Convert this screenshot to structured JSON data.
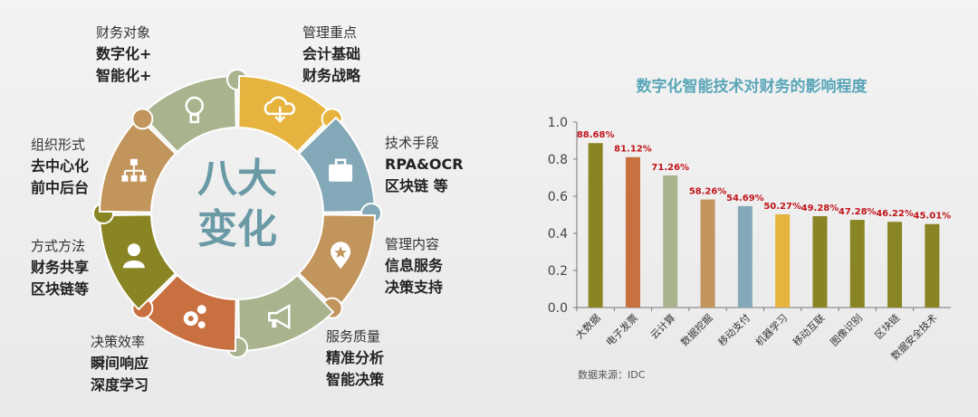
{
  "wheel": {
    "center_line1": "八大",
    "center_line2": "变化",
    "segments": [
      {
        "heading": "财务对象",
        "lines": [
          "数字化+",
          "智能化+"
        ],
        "color": "#a9b48f",
        "icon": "lightbulb-icon"
      },
      {
        "heading": "管理重点",
        "lines": [
          "会计基础",
          "财务战略"
        ],
        "color": "#e6b43e",
        "icon": "cloud-download-icon"
      },
      {
        "heading": "技术手段",
        "lines": [
          "RPA&OCR",
          "区块链 等"
        ],
        "color": "#83a8b8",
        "icon": "briefcase-icon"
      },
      {
        "heading": "管理内容",
        "lines": [
          "信息服务",
          "决策支持"
        ],
        "color": "#c1955c",
        "icon": "map-pin-star-icon"
      },
      {
        "heading": "服务质量",
        "lines": [
          "精准分析",
          "智能决策"
        ],
        "color": "#a9b48f",
        "icon": "megaphone-icon"
      },
      {
        "heading": "决策效率",
        "lines": [
          "瞬间响应",
          "深度学习"
        ],
        "color": "#c87040",
        "icon": "gears-icon"
      },
      {
        "heading": "方式方法",
        "lines": [
          "财务共享",
          "区块链等"
        ],
        "color": "#8a8524",
        "icon": "user-icon"
      },
      {
        "heading": "组织形式",
        "lines": [
          "去中心化",
          "前中后台"
        ],
        "color": "#c1955c",
        "icon": "org-chart-icon"
      }
    ]
  },
  "chart_data": {
    "type": "bar",
    "title": "数字化智能技术对财务的影响程度",
    "categories": [
      "大数据",
      "电子发票",
      "云计算",
      "数据挖掘",
      "移动支付",
      "机器学习",
      "移动互联",
      "图像识别",
      "区块链",
      "数据安全技术"
    ],
    "values": [
      0.8868,
      0.8112,
      0.7126,
      0.5826,
      0.5469,
      0.5027,
      0.4928,
      0.4728,
      0.4622,
      0.4501
    ],
    "data_labels": [
      "88.68%",
      "81.12%",
      "71.26%",
      "58.26%",
      "54.69%",
      "50.27%",
      "49.28%",
      "47.28%",
      "46.22%",
      "45.01%"
    ],
    "colors": [
      "#8a8524",
      "#c87040",
      "#a9b48f",
      "#c1955c",
      "#83a8b8",
      "#e6b43e",
      "#8a8524",
      "#8a8524",
      "#8a8524",
      "#8a8524"
    ],
    "ylim": [
      0,
      1.0
    ],
    "yticks": [
      "0.0",
      "0.2",
      "0.4",
      "0.6",
      "0.8",
      "1.0"
    ],
    "xlabel": "",
    "ylabel": "",
    "grid": false,
    "source": "数据来源：IDC"
  }
}
